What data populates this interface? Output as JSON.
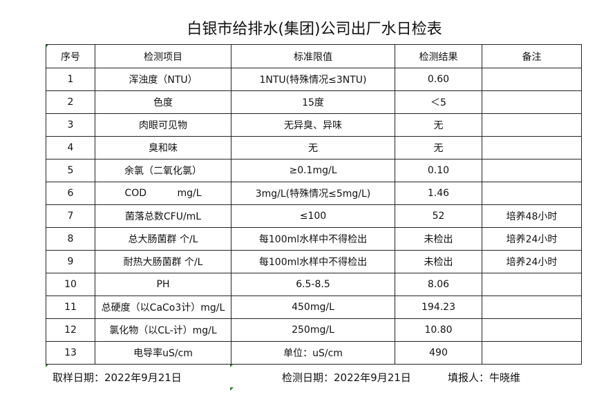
{
  "title": "白银市给排水(集团)公司出厂水日检表",
  "headers": [
    "序号",
    "检测项目",
    "标准限值",
    "检测结果",
    "备注"
  ],
  "rows": [
    [
      "1",
      "浑浊度（NTU）",
      "1NTU(特殊情况≤3NTU)",
      "0.60",
      ""
    ],
    [
      "2",
      "色度",
      "15度",
      "＜5",
      ""
    ],
    [
      "3",
      "肉眼可见物",
      "无异臭、异味",
      "无",
      ""
    ],
    [
      "4",
      "臭和味",
      "无",
      "无",
      ""
    ],
    [
      "5",
      "余氯（二氧化氯）",
      "≥0.1mg/L",
      "0.10",
      ""
    ],
    [
      "6",
      "COD          mg/L",
      "3mg/L(特殊情况≤5mg/L)",
      "1.46",
      ""
    ],
    [
      "7",
      "菌落总数CFU/mL",
      "≤100",
      "52",
      "培养48小时"
    ],
    [
      "8",
      "总大肠菌群 个/L",
      "每100ml水样中不得检出",
      "未检出",
      "培养24小时"
    ],
    [
      "9",
      "耐热大肠菌群 个/L",
      "每100ml水样中不得检出",
      "未检出",
      "培养24小时"
    ],
    [
      "10",
      "PH",
      "6.5-8.5",
      "8.06",
      ""
    ],
    [
      "11",
      "总硬度（以CaCo3计）mg/L",
      "450mg/L",
      "194.23",
      ""
    ],
    [
      "12",
      "氯化物（以CL-计）mg/L",
      "250mg/L",
      "10.80",
      ""
    ],
    [
      "13",
      "电导率uS/cm",
      "单位：uS/cm",
      "490",
      ""
    ]
  ],
  "footer": {
    "sampling_date": "取样日期：2022年9月21日",
    "test_date": "检测日期：2022年9月21日",
    "reporter": "填报人：牛晓维"
  }
}
